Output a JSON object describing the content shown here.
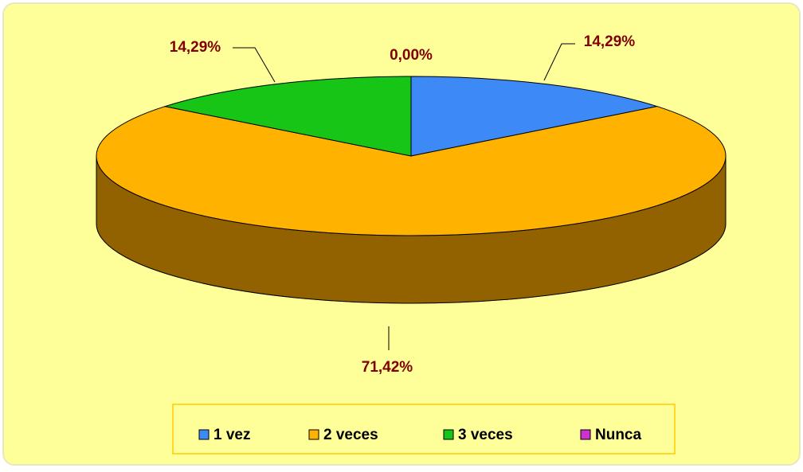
{
  "chart_data": {
    "type": "pie3d",
    "categories": [
      "1 vez",
      "2 veces",
      "3 veces",
      "Nunca"
    ],
    "values": [
      14.29,
      71.42,
      14.29,
      0
    ],
    "value_labels": [
      "14,29%",
      "71,42%",
      "14,29%",
      "0,00%"
    ],
    "colors": [
      "#3d8af7",
      "#ffb300",
      "#16c516",
      "#cc33cc"
    ],
    "legend": "bottom"
  }
}
